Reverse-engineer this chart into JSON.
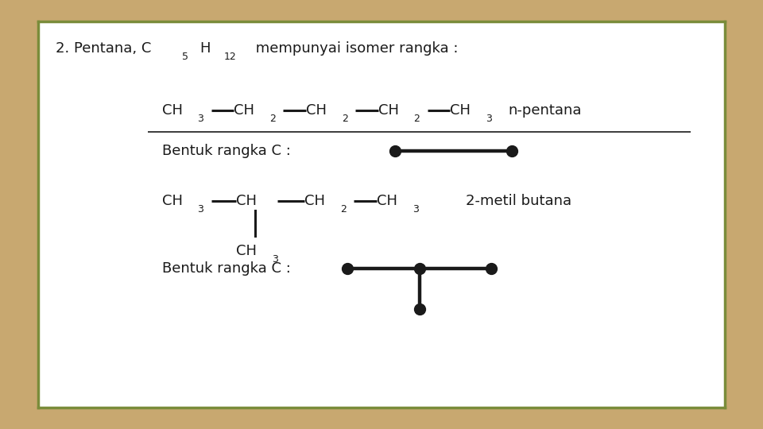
{
  "background_outer": "#c8a870",
  "background_inner": "#ffffff",
  "border_color": "#7a8c3a",
  "font_color": "#1a1a1a",
  "bond_color": "#1a1a1a",
  "title": "2. Pentana, C",
  "title_sub5": "5",
  "title_H": "H",
  "title_sub12": "12",
  "title_rest": " mempunyai isomer rangka :",
  "n_pentana_label": "n-pentana",
  "bentuk1_text": "Bentuk rangka C :",
  "metil_label": "2-metil butana",
  "bentuk2_text": "Bentuk rangka C :"
}
